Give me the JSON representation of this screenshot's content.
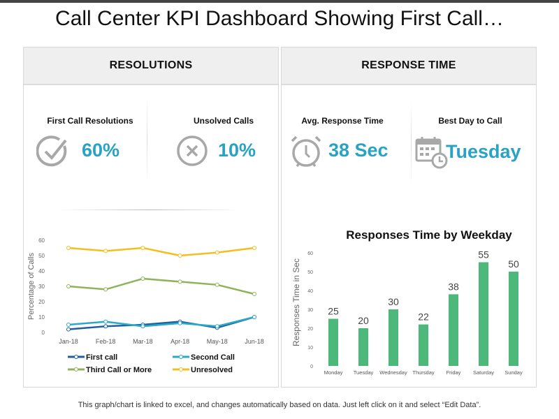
{
  "title": "Call Center KPI Dashboard Showing First Call…",
  "panels": {
    "resolutions": {
      "header": "RESOLUTIONS",
      "kpis": [
        {
          "label": "First Call Resolutions",
          "value": "60%",
          "icon": "check-circle-icon"
        },
        {
          "label": "Unsolved Calls",
          "value": "10%",
          "icon": "x-circle-icon"
        }
      ]
    },
    "response": {
      "header": "RESPONSE  TIME",
      "kpis": [
        {
          "label": "Avg. Response Time",
          "value": "38 Sec",
          "icon": "alarm-clock-icon"
        },
        {
          "label": "Best Day to Call",
          "value": "Tuesday",
          "icon": "calendar-clock-icon"
        }
      ]
    }
  },
  "colors": {
    "accent": "#29a3c4",
    "first_call": "#1f5fa0",
    "second_call": "#2aa9c8",
    "third_call": "#8fb35a",
    "unresolved": "#f2c01e",
    "bars": "#4cb87a"
  },
  "chart_data": [
    {
      "type": "line",
      "title": "",
      "xlabel": "",
      "ylabel": "Percentage of Calls",
      "categories": [
        "Jan-18",
        "Feb-18",
        "Mar-18",
        "Apr-18",
        "May-18",
        "Jun-18"
      ],
      "ylim": [
        0,
        60
      ],
      "yticks": [
        "0",
        "10",
        "20",
        "30",
        "40",
        "50",
        "60"
      ],
      "grid": false,
      "legend": "bottom",
      "series": [
        {
          "name": "First call",
          "values": [
            2,
            4,
            5,
            7,
            3,
            10
          ],
          "color": "#1f5fa0"
        },
        {
          "name": "Second Call",
          "values": [
            5,
            7,
            4,
            6,
            4,
            10
          ],
          "color": "#2aa9c8"
        },
        {
          "name": "Third Call or More",
          "values": [
            30,
            28,
            35,
            33,
            31,
            25
          ],
          "color": "#8fb35a"
        },
        {
          "name": "Unresolved",
          "values": [
            55,
            53,
            55,
            50,
            52,
            55
          ],
          "color": "#f2c01e"
        }
      ]
    },
    {
      "type": "bar",
      "title": "Responses Time by Weekday",
      "xlabel": "",
      "ylabel": "Responses Time in Sec",
      "categories": [
        "Monday",
        "Tuesday",
        "Wednesday",
        "Thursday",
        "Friday",
        "Saturday",
        "Sunday"
      ],
      "values": [
        25,
        20,
        30,
        22,
        38,
        55,
        50
      ],
      "ylim": [
        0,
        60
      ],
      "yticks": [
        "0",
        "10",
        "20",
        "30",
        "40",
        "50",
        "60"
      ],
      "grid": false,
      "color": "#4cb87a"
    }
  ],
  "footer": "This graph/chart is linked to excel, and changes automatically based on data. Just left click on it and select “Edit Data”."
}
